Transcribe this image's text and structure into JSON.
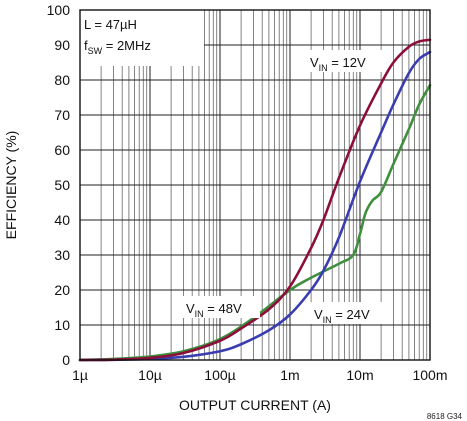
{
  "chart_data": {
    "type": "line",
    "xscale": "log",
    "xlim": [
      1e-06,
      0.1
    ],
    "ylim": [
      0,
      100
    ],
    "grid": true,
    "xlabel": "OUTPUT CURRENT (A)",
    "ylabel": "EFFICIENCY (%)",
    "xtick_labels": [
      "1µ",
      "10µ",
      "100µ",
      "1m",
      "10m",
      "100m"
    ],
    "ytick_labels": [
      "0",
      "10",
      "20",
      "30",
      "40",
      "50",
      "60",
      "70",
      "80",
      "90",
      "100"
    ],
    "conditions": {
      "inductance": "L = 47µH",
      "f_main": "f",
      "f_sub": "SW",
      "f_value": " = 2MHz"
    },
    "figure_code": "8618 G34",
    "series": [
      {
        "name": "VIN = 12V",
        "label_main": "V",
        "label_sub": "IN",
        "label_value": " = 12V",
        "color": "#8b0f3a",
        "x": [
          1e-06,
          3e-06,
          1e-05,
          3e-05,
          0.0001,
          0.0002,
          0.0005,
          0.001,
          0.002,
          0.003,
          0.005,
          0.01,
          0.02,
          0.03,
          0.05,
          0.07,
          0.1
        ],
        "y": [
          0,
          0.1,
          0.6,
          2,
          5.5,
          9,
          14.5,
          21,
          32,
          40,
          52,
          67,
          79,
          85,
          89.5,
          91,
          91.5
        ]
      },
      {
        "name": "VIN = 24V",
        "label_main": "V",
        "label_sub": "IN",
        "label_value": " = 24V",
        "color": "#3a3db0",
        "x": [
          1e-06,
          3e-06,
          1e-05,
          3e-05,
          0.0001,
          0.0002,
          0.0005,
          0.001,
          0.002,
          0.003,
          0.005,
          0.01,
          0.02,
          0.03,
          0.05,
          0.07,
          0.1
        ],
        "y": [
          0,
          0.05,
          0.3,
          0.9,
          2.5,
          4.5,
          8.5,
          13,
          20,
          25.5,
          35,
          51,
          65,
          73,
          82,
          86,
          88
        ]
      },
      {
        "name": "VIN = 48V",
        "label_main": "V",
        "label_sub": "IN",
        "label_value": " = 48V",
        "color": "#3f8f3f",
        "x": [
          1e-06,
          3e-06,
          1e-05,
          3e-05,
          0.0001,
          0.0003,
          0.001,
          0.002,
          0.005,
          0.008,
          0.01,
          0.012,
          0.015,
          0.02,
          0.03,
          0.05,
          0.07,
          0.1
        ],
        "y": [
          0,
          0.3,
          1,
          2.5,
          6,
          12,
          20,
          23.5,
          27.5,
          30,
          36,
          42,
          45.5,
          48,
          56,
          66,
          73,
          78.5
        ]
      }
    ]
  }
}
